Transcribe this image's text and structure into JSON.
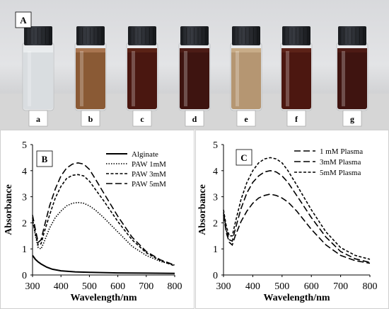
{
  "photo": {
    "panel_label": "A",
    "vials": [
      {
        "label": "a",
        "liquid": "#d9dde0",
        "liquid_top": "#e9ecee"
      },
      {
        "label": "b",
        "liquid": "#8a5a35",
        "liquid_top": "#a87550"
      },
      {
        "label": "c",
        "liquid": "#4a1710",
        "liquid_top": "#5a2216"
      },
      {
        "label": "d",
        "liquid": "#3e1410",
        "liquid_top": "#4c1c16"
      },
      {
        "label": "e",
        "liquid": "#b59672",
        "liquid_top": "#c8ac88"
      },
      {
        "label": "f",
        "liquid": "#4c1710",
        "liquid_top": "#5c2218"
      },
      {
        "label": "g",
        "liquid": "#3f1410",
        "liquid_top": "#4d1b15"
      }
    ]
  },
  "chart_data": [
    {
      "type": "line",
      "panel_label": "B",
      "xlabel": "Wavelength/nm",
      "ylabel": "Absorbance",
      "xlim": [
        300,
        800
      ],
      "ylim": [
        0,
        5
      ],
      "xticks": [
        300,
        400,
        500,
        600,
        700,
        800
      ],
      "yticks": [
        0,
        1,
        2,
        3,
        4,
        5
      ],
      "legend_position": "top-right",
      "grid": false,
      "series": [
        {
          "name": "Alginate",
          "style": "solid",
          "x": [
            300,
            310,
            320,
            330,
            340,
            350,
            370,
            400,
            450,
            500,
            600,
            700,
            800
          ],
          "y": [
            0.75,
            0.6,
            0.5,
            0.42,
            0.36,
            0.3,
            0.22,
            0.16,
            0.12,
            0.1,
            0.08,
            0.07,
            0.06
          ]
        },
        {
          "name": "PAW 1mM",
          "style": "dotted",
          "x": [
            300,
            310,
            320,
            330,
            340,
            360,
            380,
            400,
            420,
            440,
            460,
            480,
            500,
            520,
            550,
            600,
            650,
            700,
            750,
            800
          ],
          "y": [
            2.2,
            1.5,
            1.05,
            1.0,
            1.25,
            1.8,
            2.2,
            2.45,
            2.65,
            2.75,
            2.78,
            2.75,
            2.65,
            2.5,
            2.2,
            1.65,
            1.1,
            0.75,
            0.52,
            0.38
          ]
        },
        {
          "name": "PAW 3mM",
          "style": "short-dash",
          "x": [
            300,
            310,
            320,
            330,
            340,
            360,
            380,
            400,
            420,
            440,
            460,
            480,
            500,
            520,
            550,
            600,
            650,
            700,
            750,
            800
          ],
          "y": [
            2.1,
            1.6,
            1.15,
            1.2,
            1.6,
            2.3,
            2.95,
            3.4,
            3.7,
            3.82,
            3.85,
            3.8,
            3.6,
            3.3,
            2.85,
            2.05,
            1.35,
            0.85,
            0.55,
            0.35
          ]
        },
        {
          "name": "PAW 5mM",
          "style": "long-dash",
          "x": [
            300,
            310,
            320,
            330,
            340,
            360,
            380,
            400,
            420,
            440,
            460,
            480,
            500,
            520,
            550,
            600,
            650,
            700,
            750,
            800
          ],
          "y": [
            2.3,
            1.75,
            1.25,
            1.35,
            1.8,
            2.65,
            3.3,
            3.8,
            4.1,
            4.25,
            4.3,
            4.25,
            4.05,
            3.7,
            3.15,
            2.25,
            1.45,
            0.9,
            0.58,
            0.38
          ]
        }
      ]
    },
    {
      "type": "line",
      "panel_label": "C",
      "xlabel": "Wavelength/nm",
      "ylabel": "Absorbance",
      "xlim": [
        300,
        800
      ],
      "ylim": [
        0,
        5
      ],
      "xticks": [
        300,
        400,
        500,
        600,
        700,
        800
      ],
      "yticks": [
        0,
        1,
        2,
        3,
        4,
        5
      ],
      "legend_position": "top-right",
      "grid": false,
      "series": [
        {
          "name": "1 mM Plasma",
          "style": "long-dash",
          "x": [
            300,
            310,
            320,
            330,
            340,
            360,
            380,
            400,
            420,
            440,
            460,
            480,
            500,
            520,
            550,
            600,
            650,
            700,
            750,
            800
          ],
          "y": [
            2.3,
            1.6,
            1.25,
            1.15,
            1.5,
            2.05,
            2.45,
            2.75,
            2.95,
            3.05,
            3.1,
            3.05,
            2.95,
            2.8,
            2.45,
            1.75,
            1.15,
            0.75,
            0.55,
            0.45
          ]
        },
        {
          "name": "3mM Plasma",
          "style": "long-dash",
          "x": [
            300,
            310,
            320,
            330,
            340,
            360,
            380,
            400,
            420,
            440,
            460,
            480,
            500,
            520,
            550,
            600,
            650,
            700,
            750,
            800
          ],
          "y": [
            2.4,
            1.7,
            1.35,
            1.3,
            1.75,
            2.55,
            3.15,
            3.55,
            3.8,
            3.95,
            4.0,
            3.95,
            3.8,
            3.55,
            3.05,
            2.2,
            1.45,
            0.9,
            0.62,
            0.48
          ]
        },
        {
          "name": "5mM Plasma",
          "style": "short-dash",
          "x": [
            300,
            310,
            320,
            330,
            340,
            360,
            380,
            400,
            420,
            440,
            460,
            480,
            500,
            520,
            550,
            600,
            650,
            700,
            750,
            800
          ],
          "y": [
            2.5,
            1.85,
            1.5,
            1.5,
            2.0,
            2.9,
            3.55,
            4.0,
            4.3,
            4.45,
            4.5,
            4.45,
            4.3,
            4.0,
            3.45,
            2.5,
            1.65,
            1.05,
            0.75,
            0.6
          ]
        }
      ]
    }
  ]
}
